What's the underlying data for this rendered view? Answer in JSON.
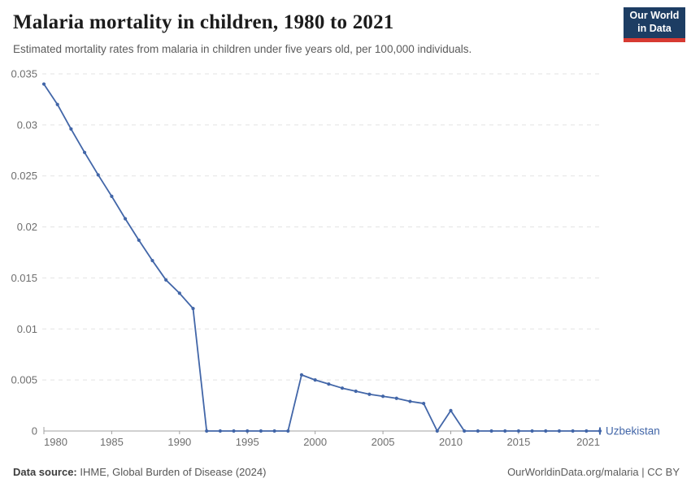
{
  "header": {
    "title": "Malaria mortality in children, 1980 to 2021",
    "subtitle": "Estimated mortality rates from malaria in children under five years old, per 100,000 individuals.",
    "logo": {
      "line1": "Our World",
      "line2": "in Data",
      "bg_color": "#1d3d63",
      "bar_color": "#d73a32"
    }
  },
  "chart_data": {
    "type": "line",
    "title": "Malaria mortality in children, 1980 to 2021",
    "xlabel": "",
    "ylabel": "",
    "xlim": [
      1980,
      2021
    ],
    "ylim": [
      0,
      0.035
    ],
    "grid": "horizontal-dashed",
    "legend_position": "end-of-line",
    "x_ticks": [
      {
        "value": 1980,
        "label": "1980"
      },
      {
        "value": 1985,
        "label": "1985"
      },
      {
        "value": 1990,
        "label": "1990"
      },
      {
        "value": 1995,
        "label": "1995"
      },
      {
        "value": 2000,
        "label": "2000"
      },
      {
        "value": 2005,
        "label": "2005"
      },
      {
        "value": 2010,
        "label": "2010"
      },
      {
        "value": 2015,
        "label": "2015"
      },
      {
        "value": 2021,
        "label": "2021"
      }
    ],
    "y_ticks": [
      {
        "value": 0,
        "label": "0"
      },
      {
        "value": 0.005,
        "label": "0.005"
      },
      {
        "value": 0.01,
        "label": "0.01"
      },
      {
        "value": 0.015,
        "label": "0.015"
      },
      {
        "value": 0.02,
        "label": "0.02"
      },
      {
        "value": 0.025,
        "label": "0.025"
      },
      {
        "value": 0.03,
        "label": "0.03"
      },
      {
        "value": 0.035,
        "label": "0.035"
      }
    ],
    "series": [
      {
        "name": "Uzbekistan",
        "color": "#4266a8",
        "x_start": 1980,
        "values": [
          0.034,
          0.032,
          0.0296,
          0.0273,
          0.0251,
          0.023,
          0.0208,
          0.0187,
          0.0167,
          0.0148,
          0.0135,
          0.012,
          0,
          0,
          0,
          0,
          0,
          0,
          0,
          0.0055,
          0.005,
          0.0046,
          0.0042,
          0.0039,
          0.0036,
          0.0034,
          0.0032,
          0.0029,
          0.0027,
          0,
          0.002,
          0,
          0,
          0,
          0,
          0,
          0,
          0,
          0,
          0,
          0,
          0
        ]
      }
    ]
  },
  "footer": {
    "source_label": "Data source:",
    "source_text": " IHME, Global Burden of Disease (2024)",
    "credit": "OurWorldinData.org/malaria | CC BY"
  }
}
